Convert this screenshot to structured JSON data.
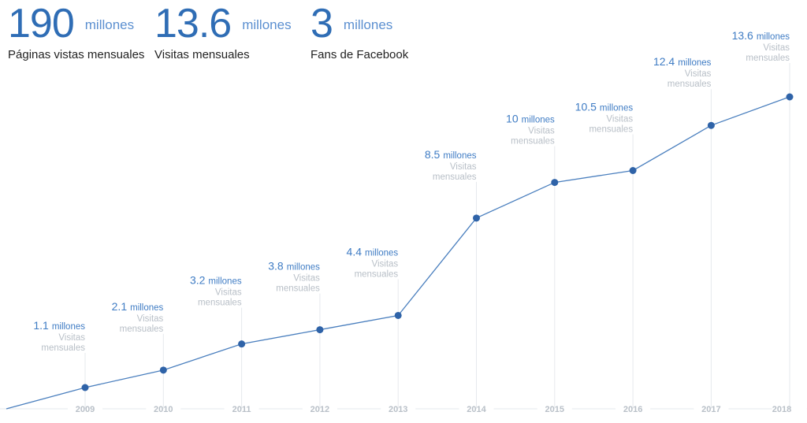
{
  "stats": [
    {
      "value": "190",
      "unit": "millones",
      "label": "Páginas vistas mensuales"
    },
    {
      "value": "13.6",
      "unit": "millones",
      "label": "Visitas mensuales"
    },
    {
      "value": "3",
      "unit": "millones",
      "label": "Fans de Facebook"
    }
  ],
  "colors": {
    "line": "#4a7fbe",
    "point": "#2f63a8",
    "accent": "#3f7cc4",
    "muted": "#b9c0c8"
  },
  "chart_data": {
    "type": "line",
    "title": "",
    "xlabel": "",
    "ylabel": "",
    "unit_label": "millones",
    "point_sublabel": [
      "Visitas",
      "mensuales"
    ],
    "categories": [
      "2009",
      "2010",
      "2011",
      "2012",
      "2013",
      "2014",
      "2015",
      "2016",
      "2017",
      "2018"
    ],
    "series": [
      {
        "values": [
          1.1,
          2.1,
          3.2,
          3.8,
          4.4,
          8.5,
          10,
          10.5,
          12.4,
          13.6
        ]
      }
    ],
    "ylim": [
      0,
      13.6
    ],
    "grid": false,
    "legend": "none"
  }
}
